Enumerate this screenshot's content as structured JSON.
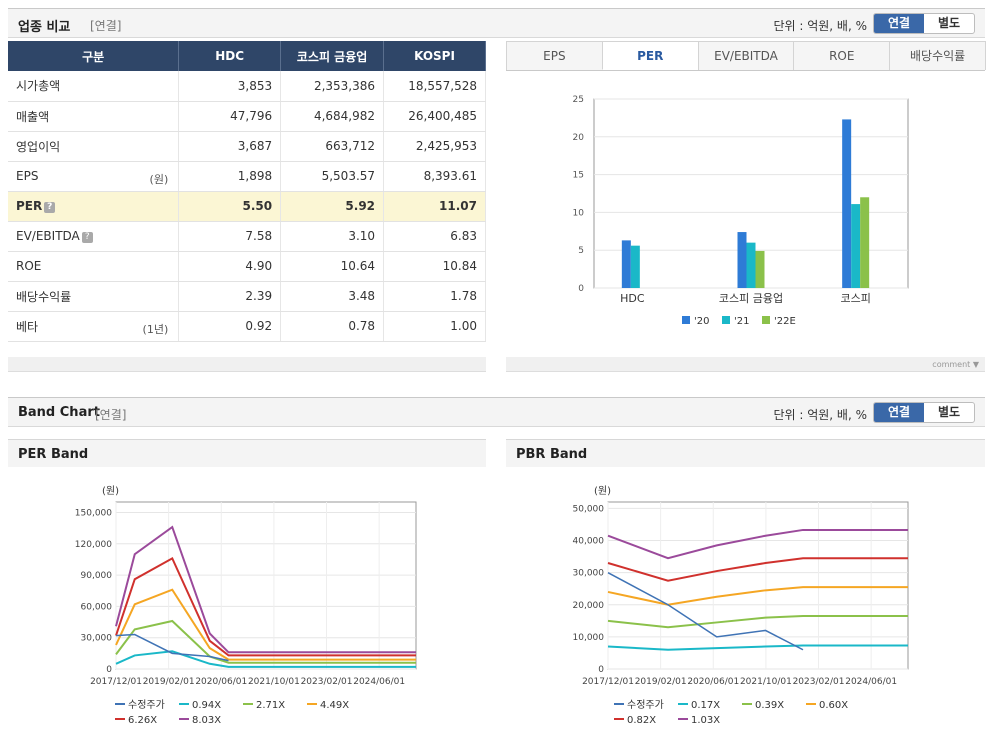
{
  "section1": {
    "title": "업종 비교",
    "sub": "[연결]",
    "unit": "단위 : 억원, 배, %",
    "toggle_on": "연결",
    "toggle_off": "별도"
  },
  "table": {
    "headers": [
      "구분",
      "HDC",
      "코스피 금융업",
      "KOSPI"
    ],
    "rows": [
      {
        "label": "시가총액",
        "note": "",
        "q": false,
        "values": [
          "3,853",
          "2,353,386",
          "18,557,528"
        ]
      },
      {
        "label": "매출액",
        "note": "",
        "q": false,
        "values": [
          "47,796",
          "4,684,982",
          "26,400,485"
        ]
      },
      {
        "label": "영업이익",
        "note": "",
        "q": false,
        "values": [
          "3,687",
          "663,712",
          "2,425,953"
        ]
      },
      {
        "label": "EPS",
        "note": "(원)",
        "q": false,
        "values": [
          "1,898",
          "5,503.57",
          "8,393.61"
        ]
      },
      {
        "label": "PER",
        "note": "",
        "q": true,
        "values": [
          "5.50",
          "5.92",
          "11.07"
        ]
      },
      {
        "label": "EV/EBITDA",
        "note": "",
        "q": true,
        "values": [
          "7.58",
          "3.10",
          "6.83"
        ]
      },
      {
        "label": "ROE",
        "note": "",
        "q": false,
        "values": [
          "4.90",
          "10.64",
          "10.84"
        ]
      },
      {
        "label": "배당수익률",
        "note": "",
        "q": false,
        "values": [
          "2.39",
          "3.48",
          "1.78"
        ]
      },
      {
        "label": "베타",
        "note": "(1년)",
        "q": false,
        "values": [
          "0.92",
          "0.78",
          "1.00"
        ]
      }
    ]
  },
  "tabs": [
    "EPS",
    "PER",
    "EV/EBITDA",
    "ROE",
    "배당수익률"
  ],
  "comment_label": "comment ▼",
  "section2": {
    "title": "Band Chart",
    "sub": "[연결]",
    "unit": "단위 : 억원, 배, %",
    "toggle_on": "연결",
    "toggle_off": "별도"
  },
  "per_band_title": "PER Band",
  "pbr_band_title": "PBR Band",
  "colors": {
    "blue": "#2e7bd6",
    "cyan": "#1ab8c8",
    "green": "#8bc14a",
    "red": "#d0312d",
    "orange": "#f5a623",
    "purple": "#9b4a9b",
    "price": "#3f73b5"
  },
  "chart_data": [
    {
      "type": "bar",
      "title": "PER",
      "categories": [
        "HDC",
        "코스피 금융업",
        "코스피"
      ],
      "series": [
        {
          "name": "'20",
          "values": [
            6.3,
            7.4,
            22.3
          ]
        },
        {
          "name": "'21",
          "values": [
            5.6,
            6.0,
            11.1
          ]
        },
        {
          "name": "'22E",
          "values": [
            null,
            4.9,
            12.0
          ]
        }
      ],
      "ylim": [
        0,
        25
      ],
      "yticks": [
        0,
        5,
        10,
        15,
        20,
        25
      ]
    },
    {
      "type": "line",
      "title": "PER Band",
      "ylabel": "(원)",
      "yticks": [
        "0",
        "30,000",
        "60,000",
        "90,000",
        "120,000",
        "150,000"
      ],
      "ylim": [
        0,
        160000
      ],
      "xticks": [
        "2017/12/01",
        "2019/02/01",
        "2020/06/01",
        "2021/10/01",
        "2023/02/01",
        "2024/06/01"
      ],
      "x": [
        0,
        5,
        15,
        25,
        30,
        50,
        80
      ],
      "series": [
        {
          "name": "수정주가",
          "values": [
            32000,
            33000,
            15000,
            12000,
            8000,
            null,
            null
          ]
        },
        {
          "name": "0.94X",
          "values": [
            5000,
            13000,
            17000,
            5000,
            2000,
            2000,
            2000
          ]
        },
        {
          "name": "2.71X",
          "values": [
            14000,
            38000,
            46000,
            12000,
            6000,
            6000,
            6000
          ]
        },
        {
          "name": "4.49X",
          "values": [
            23000,
            62000,
            76000,
            20000,
            9000,
            9000,
            9000
          ]
        },
        {
          "name": "6.26X",
          "values": [
            32000,
            86000,
            106000,
            27000,
            13000,
            13000,
            13000
          ]
        },
        {
          "name": "8.03X",
          "values": [
            41000,
            110000,
            136000,
            34000,
            16000,
            16000,
            16000
          ]
        }
      ],
      "legend": [
        "수정주가",
        "0.94X",
        "2.71X",
        "4.49X",
        "6.26X",
        "8.03X"
      ]
    },
    {
      "type": "line",
      "title": "PBR Band",
      "ylabel": "(원)",
      "yticks": [
        "0",
        "10,000",
        "20,000",
        "30,000",
        "40,000",
        "50,000"
      ],
      "ylim": [
        0,
        52000
      ],
      "xticks": [
        "2017/12/01",
        "2019/02/01",
        "2020/06/01",
        "2021/10/01",
        "2023/02/01",
        "2024/06/01"
      ],
      "x": [
        0,
        16,
        29,
        42,
        52,
        80
      ],
      "series": [
        {
          "name": "수정주가",
          "values": [
            30000,
            20000,
            10000,
            12000,
            6000,
            null
          ]
        },
        {
          "name": "0.17X",
          "values": [
            7000,
            6000,
            6500,
            7000,
            7300,
            7300
          ]
        },
        {
          "name": "0.39X",
          "values": [
            15000,
            13000,
            14500,
            16000,
            16500,
            16500
          ]
        },
        {
          "name": "0.60X",
          "values": [
            24000,
            20000,
            22500,
            24500,
            25500,
            25500
          ]
        },
        {
          "name": "0.82X",
          "values": [
            33000,
            27500,
            30500,
            33000,
            34500,
            34500
          ]
        },
        {
          "name": "1.03X",
          "values": [
            41500,
            34500,
            38500,
            41500,
            43300,
            43300
          ]
        }
      ],
      "legend": [
        "수정주가",
        "0.17X",
        "0.39X",
        "0.60X",
        "0.82X",
        "1.03X"
      ]
    }
  ]
}
